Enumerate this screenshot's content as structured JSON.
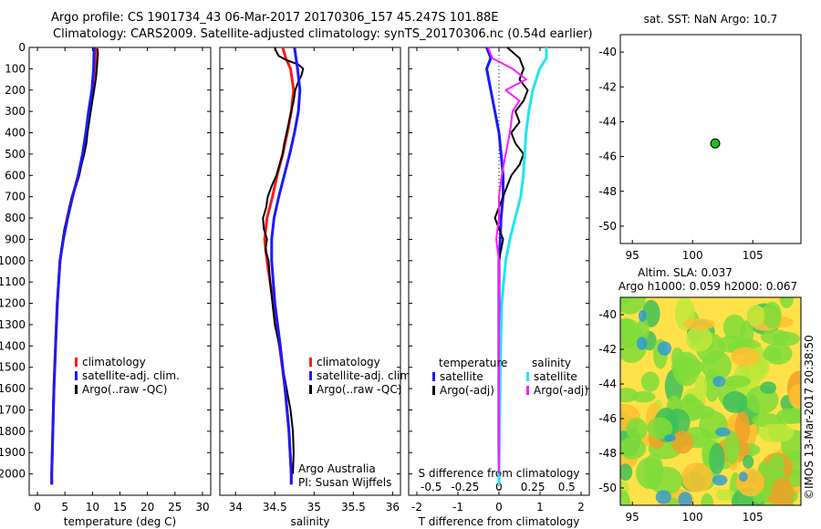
{
  "header": {
    "line1": "Argo profile: CS 1901734_43 06-Mar-2017 20170306_157 45.247S 101.88E",
    "line2": "Climatology: CARS2009. Satellite-adjusted climatology: synTS_20170306.nc (0.54d earlier)"
  },
  "credit": "©IMOS 13-Mar-2017 20:38:50",
  "colors": {
    "climatology": "#ff1a1a",
    "satellite": "#1a1aff",
    "argo": "#000000",
    "salinity_sat": "#22e5f0",
    "salinity_argo": "#ff1aff",
    "float_marker": "#22bb22"
  },
  "chart_data": [
    {
      "id": "temperature",
      "type": "line",
      "xlabel": "temperature (deg C)",
      "ylim": [
        2100,
        0
      ],
      "xlim": [
        -1.5,
        31.5
      ],
      "xticks": [
        "0",
        "5",
        "10",
        "15",
        "20",
        "25",
        "30"
      ],
      "yticks": [
        "0",
        "100",
        "200",
        "300",
        "400",
        "500",
        "600",
        "700",
        "800",
        "900",
        "1000",
        "1100",
        "1200",
        "1300",
        "1400",
        "1500",
        "1600",
        "1700",
        "1800",
        "1900",
        "2000"
      ],
      "legend": [
        "climatology",
        "satellite-adj. clim.",
        "Argo(..raw -QC)"
      ],
      "series": [
        {
          "name": "climatology",
          "depth": [
            0,
            100,
            200,
            300,
            400,
            500,
            600,
            700,
            800,
            900,
            1000,
            1200,
            1400,
            1600,
            1800,
            2000,
            2050
          ],
          "values": [
            10.6,
            10.5,
            10.1,
            9.5,
            9.0,
            8.3,
            7.5,
            6.3,
            5.4,
            4.7,
            4.1,
            3.6,
            3.3,
            3.0,
            2.8,
            2.6,
            2.6
          ]
        },
        {
          "name": "satellite-adj. clim.",
          "depth": [
            0,
            100,
            200,
            300,
            400,
            500,
            600,
            700,
            800,
            900,
            1000,
            1200,
            1400,
            1600,
            1800,
            2000,
            2050
          ],
          "values": [
            10.3,
            10.2,
            9.9,
            9.3,
            8.8,
            8.2,
            7.4,
            6.4,
            5.5,
            4.7,
            4.1,
            3.6,
            3.3,
            3.0,
            2.8,
            2.6,
            2.6
          ]
        },
        {
          "name": "Argo(..raw -QC)",
          "depth": [
            5,
            30,
            60,
            100,
            150,
            200,
            250,
            300,
            350,
            400,
            450,
            500,
            550,
            600,
            650,
            700,
            750,
            800,
            850,
            900,
            950,
            1000,
            1100,
            1200,
            1400,
            1600,
            1800,
            2000
          ],
          "values": [
            10.9,
            11.0,
            10.9,
            10.8,
            10.6,
            10.3,
            10.0,
            9.7,
            9.4,
            9.1,
            8.9,
            8.5,
            8.0,
            7.6,
            7.0,
            6.3,
            5.8,
            5.4,
            4.9,
            4.6,
            4.3,
            4.1,
            3.8,
            3.6,
            3.3,
            3.0,
            2.8,
            2.6
          ]
        }
      ]
    },
    {
      "id": "salinity",
      "type": "line",
      "xlabel": "salinity",
      "ylim": [
        2100,
        0
      ],
      "xlim": [
        33.8,
        36.1
      ],
      "xticks": [
        "34",
        "34.5",
        "35",
        "35.5",
        "36"
      ],
      "legend": [
        "climatology",
        "satellite-adj. clim.",
        "Argo(..raw -QC)"
      ],
      "annotation": [
        "Argo Australia",
        "PI: Susan Wijffels"
      ],
      "series": [
        {
          "name": "climatology",
          "depth": [
            0,
            50,
            100,
            200,
            300,
            400,
            500,
            600,
            700,
            800,
            900,
            1000,
            1200,
            1400,
            1600,
            1800,
            2000,
            2050
          ],
          "values": [
            34.6,
            34.64,
            34.7,
            34.74,
            34.71,
            34.66,
            34.6,
            34.53,
            34.47,
            34.4,
            34.37,
            34.4,
            34.48,
            34.56,
            34.63,
            34.68,
            34.71,
            34.71
          ]
        },
        {
          "name": "satellite-adj. clim.",
          "depth": [
            0,
            50,
            100,
            200,
            300,
            400,
            500,
            600,
            700,
            800,
            900,
            1000,
            1200,
            1400,
            1600,
            1800,
            2000,
            2050
          ],
          "values": [
            34.75,
            34.77,
            34.79,
            34.82,
            34.8,
            34.75,
            34.69,
            34.62,
            34.55,
            34.49,
            34.46,
            34.46,
            34.5,
            34.57,
            34.63,
            34.68,
            34.71,
            34.71
          ]
        },
        {
          "name": "Argo(..raw -QC)",
          "depth": [
            0,
            20,
            40,
            60,
            80,
            100,
            130,
            160,
            200,
            250,
            300,
            350,
            400,
            450,
            500,
            550,
            600,
            650,
            700,
            750,
            800,
            850,
            900,
            950,
            1000,
            1100,
            1200,
            1300,
            1400,
            1500,
            1600,
            1700,
            1800,
            1900,
            2000
          ],
          "values": [
            34.5,
            34.52,
            34.55,
            34.65,
            34.8,
            34.86,
            34.84,
            34.8,
            34.76,
            34.74,
            34.71,
            34.68,
            34.65,
            34.62,
            34.6,
            34.56,
            34.52,
            34.46,
            34.41,
            34.39,
            34.35,
            34.36,
            34.4,
            34.38,
            34.42,
            34.44,
            34.47,
            34.5,
            34.56,
            34.6,
            34.65,
            34.7,
            34.73,
            34.74,
            34.73
          ]
        }
      ]
    },
    {
      "id": "difference",
      "type": "line",
      "xlabel": "T difference from climatology",
      "xlabel2": "S difference from climatology",
      "ylim": [
        2100,
        0
      ],
      "xlim": [
        -2.2,
        2.2
      ],
      "xticks": [
        "-2",
        "-1",
        "0",
        "1",
        "2"
      ],
      "xticks2": [
        "-0.5",
        "-0.25",
        "0",
        "0.25",
        "0.5"
      ],
      "legend_headers": [
        "temperature",
        "salinity"
      ],
      "legend": [
        "satellite",
        "Argo(-adj)",
        "satellite",
        "Argo(-adj)"
      ],
      "series": [
        {
          "name": "temperature satellite",
          "depth": [
            0,
            50,
            100,
            200,
            300,
            400,
            500,
            600,
            700,
            800,
            900,
            1000,
            1200,
            1500,
            2000,
            2050
          ],
          "values": [
            -0.3,
            -0.2,
            -0.3,
            -0.2,
            -0.1,
            0.0,
            0.05,
            0.1,
            0.1,
            0.05,
            0.03,
            0.0,
            0.0,
            0.0,
            0.0,
            0.0
          ]
        },
        {
          "name": "temperature Argo(-adj)",
          "depth": [
            0,
            50,
            100,
            150,
            200,
            250,
            300,
            350,
            400,
            450,
            500,
            550,
            600,
            650,
            700,
            750,
            800,
            850,
            900,
            1000,
            1200,
            1500,
            2000
          ],
          "values": [
            0.2,
            0.5,
            0.6,
            0.5,
            0.7,
            0.6,
            0.4,
            0.5,
            0.3,
            0.4,
            0.6,
            0.5,
            0.3,
            0.2,
            0.1,
            0.0,
            -0.1,
            0.0,
            0.1,
            0.0,
            0.0,
            0.0,
            0.0
          ]
        },
        {
          "name": "salinity satellite",
          "depth": [
            0,
            50,
            100,
            200,
            300,
            400,
            500,
            600,
            700,
            800,
            900,
            1000,
            1200,
            1500,
            2000,
            2050
          ],
          "values": [
            0.35,
            0.35,
            0.3,
            0.25,
            0.22,
            0.2,
            0.19,
            0.18,
            0.16,
            0.12,
            0.08,
            0.05,
            0.02,
            0.01,
            0.0,
            0.0
          ]
        },
        {
          "name": "salinity Argo(-adj)",
          "depth": [
            0,
            50,
            100,
            150,
            200,
            250,
            300,
            400,
            500,
            600,
            700,
            800,
            900,
            1000,
            1200,
            1500,
            2000
          ],
          "values": [
            -0.08,
            -0.05,
            0.1,
            0.2,
            0.05,
            0.15,
            0.1,
            0.08,
            0.05,
            0.02,
            0.0,
            0.0,
            -0.02,
            0.0,
            0.0,
            0.0,
            0.0
          ]
        }
      ]
    },
    {
      "id": "sst-map",
      "type": "scatter",
      "title": "sat. SST: NaN Argo: 10.7",
      "xlim": [
        94,
        109
      ],
      "ylim": [
        -51,
        -39
      ],
      "xticks": [
        "95",
        "100",
        "105"
      ],
      "yticks": [
        "-40",
        "-42",
        "-44",
        "-46",
        "-48",
        "-50"
      ],
      "points": [
        {
          "x": 101.88,
          "y": -45.247
        }
      ]
    },
    {
      "id": "sla-map",
      "type": "heatmap",
      "title": "Altim. SLA: 0.037",
      "subtitle": "Argo h1000: 0.059 h2000: 0.067",
      "xlim": [
        94,
        109
      ],
      "ylim": [
        -51,
        -39
      ],
      "xticks": [
        "95",
        "100",
        "105"
      ],
      "yticks": [
        "-40",
        "-42",
        "-44",
        "-46",
        "-48",
        "-50"
      ]
    }
  ]
}
